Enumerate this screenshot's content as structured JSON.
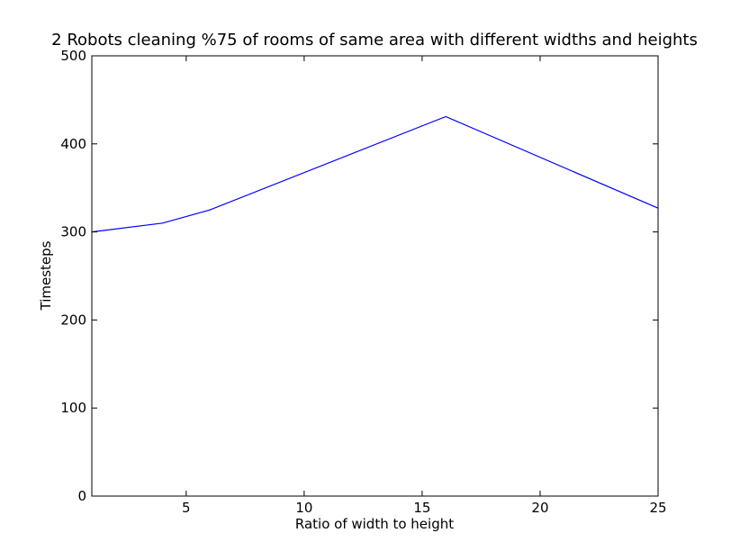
{
  "chart_data": {
    "type": "line",
    "title": "2 Robots cleaning %75 of rooms of same area with different widths and heights",
    "xlabel": "Ratio of width to height",
    "ylabel": "Timesteps",
    "xlim": [
      1,
      25
    ],
    "ylim": [
      0,
      500
    ],
    "xticks": [
      5,
      10,
      15,
      20,
      25
    ],
    "yticks": [
      0,
      100,
      200,
      300,
      400,
      500
    ],
    "grid": false,
    "series": [
      {
        "color": "#0000ff",
        "x": [
          1,
          4,
          6,
          16,
          25
        ],
        "y": [
          300,
          310,
          325,
          431,
          327
        ]
      }
    ]
  }
}
